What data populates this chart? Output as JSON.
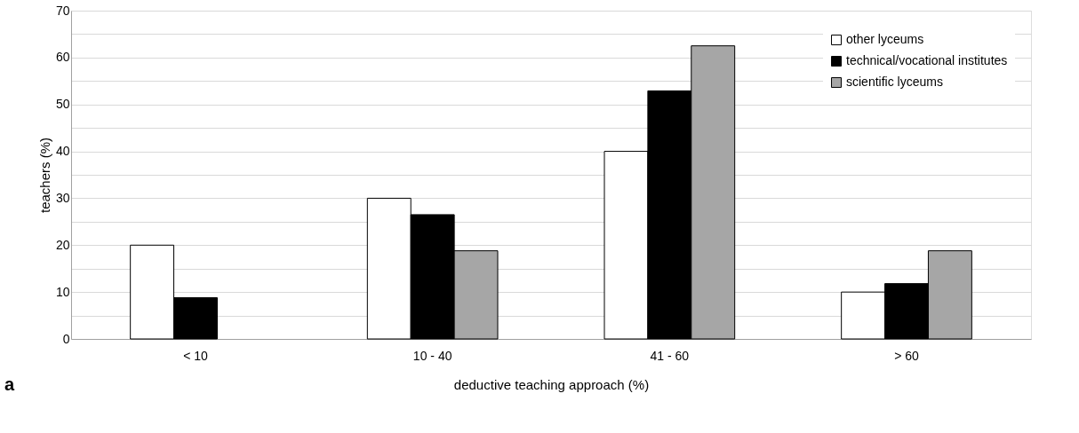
{
  "chart_data": {
    "type": "bar",
    "xlabel": "deductive teaching approach (%)",
    "ylabel": "teachers (%)",
    "categories": [
      "< 10",
      "10 - 40",
      "41 - 60",
      "> 60"
    ],
    "series": [
      {
        "name": "other lyceums",
        "color": "#ffffff",
        "values": [
          20,
          30,
          40,
          10
        ]
      },
      {
        "name": "technical/vocational institutes",
        "color": "#000000",
        "values": [
          8.8,
          26.5,
          52.9,
          11.8
        ]
      },
      {
        "name": "scientific  lyceums",
        "color": "#a6a6a6",
        "values": [
          null,
          18.8,
          62.5,
          18.8
        ]
      }
    ],
    "ylim": [
      0,
      70
    ],
    "yticks": [
      0,
      {
        "value": 5,
        "label": null
      },
      10,
      {
        "value": 15,
        "label": null
      },
      20,
      {
        "value": 25,
        "label": null
      },
      30,
      {
        "value": 35,
        "label": null
      },
      40,
      {
        "value": 45,
        "label": null
      },
      50,
      {
        "value": 55,
        "label": null
      },
      60,
      {
        "value": 65,
        "label": null
      },
      70
    ],
    "grid": "y",
    "legend": "top right",
    "annotations": [
      "a"
    ]
  }
}
